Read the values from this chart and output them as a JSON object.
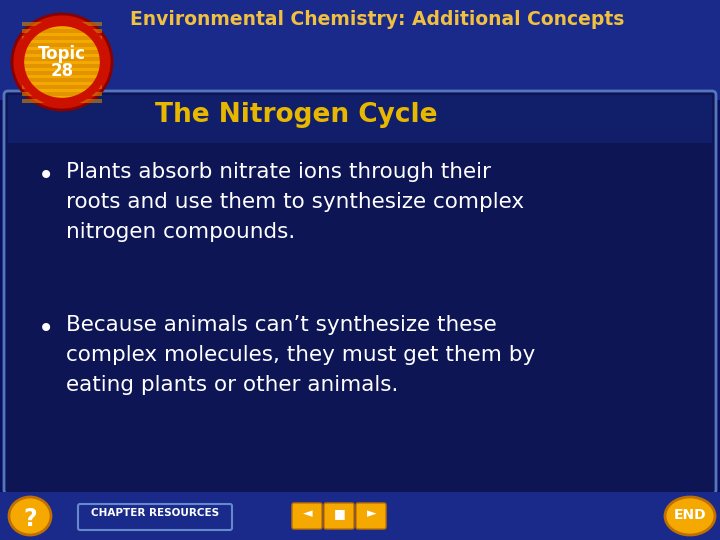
{
  "bg_outer": "#0a1060",
  "bg_main": "#0d1555",
  "header_bg": "#1a2a8a",
  "topic_outer_color": "#cc1100",
  "topic_inner_color": "#f5a800",
  "topic_stripe_color": "#d48800",
  "topic_label_line1": "Topic",
  "topic_label_line2": "28",
  "header_title": "Environmental Chemistry: Additional Concepts",
  "header_title_color": "#f0c040",
  "subtitle": "The Nitrogen Cycle",
  "subtitle_color": "#e8b800",
  "bullet1_line1": "Plants absorb nitrate ions through their",
  "bullet1_line2": "roots and use them to synthesize complex",
  "bullet1_line3": "nitrogen compounds.",
  "bullet2_line1": "Because animals can’t synthesize these",
  "bullet2_line2": "complex molecules, they must get them by",
  "bullet2_line3": "eating plants or other animals.",
  "bullet_color": "#ffffff",
  "footer_bg": "#1a2a8a",
  "footer_text": "CHAPTER RESOURCES",
  "nav_color": "#f5a800",
  "fig_width": 7.2,
  "fig_height": 5.4
}
